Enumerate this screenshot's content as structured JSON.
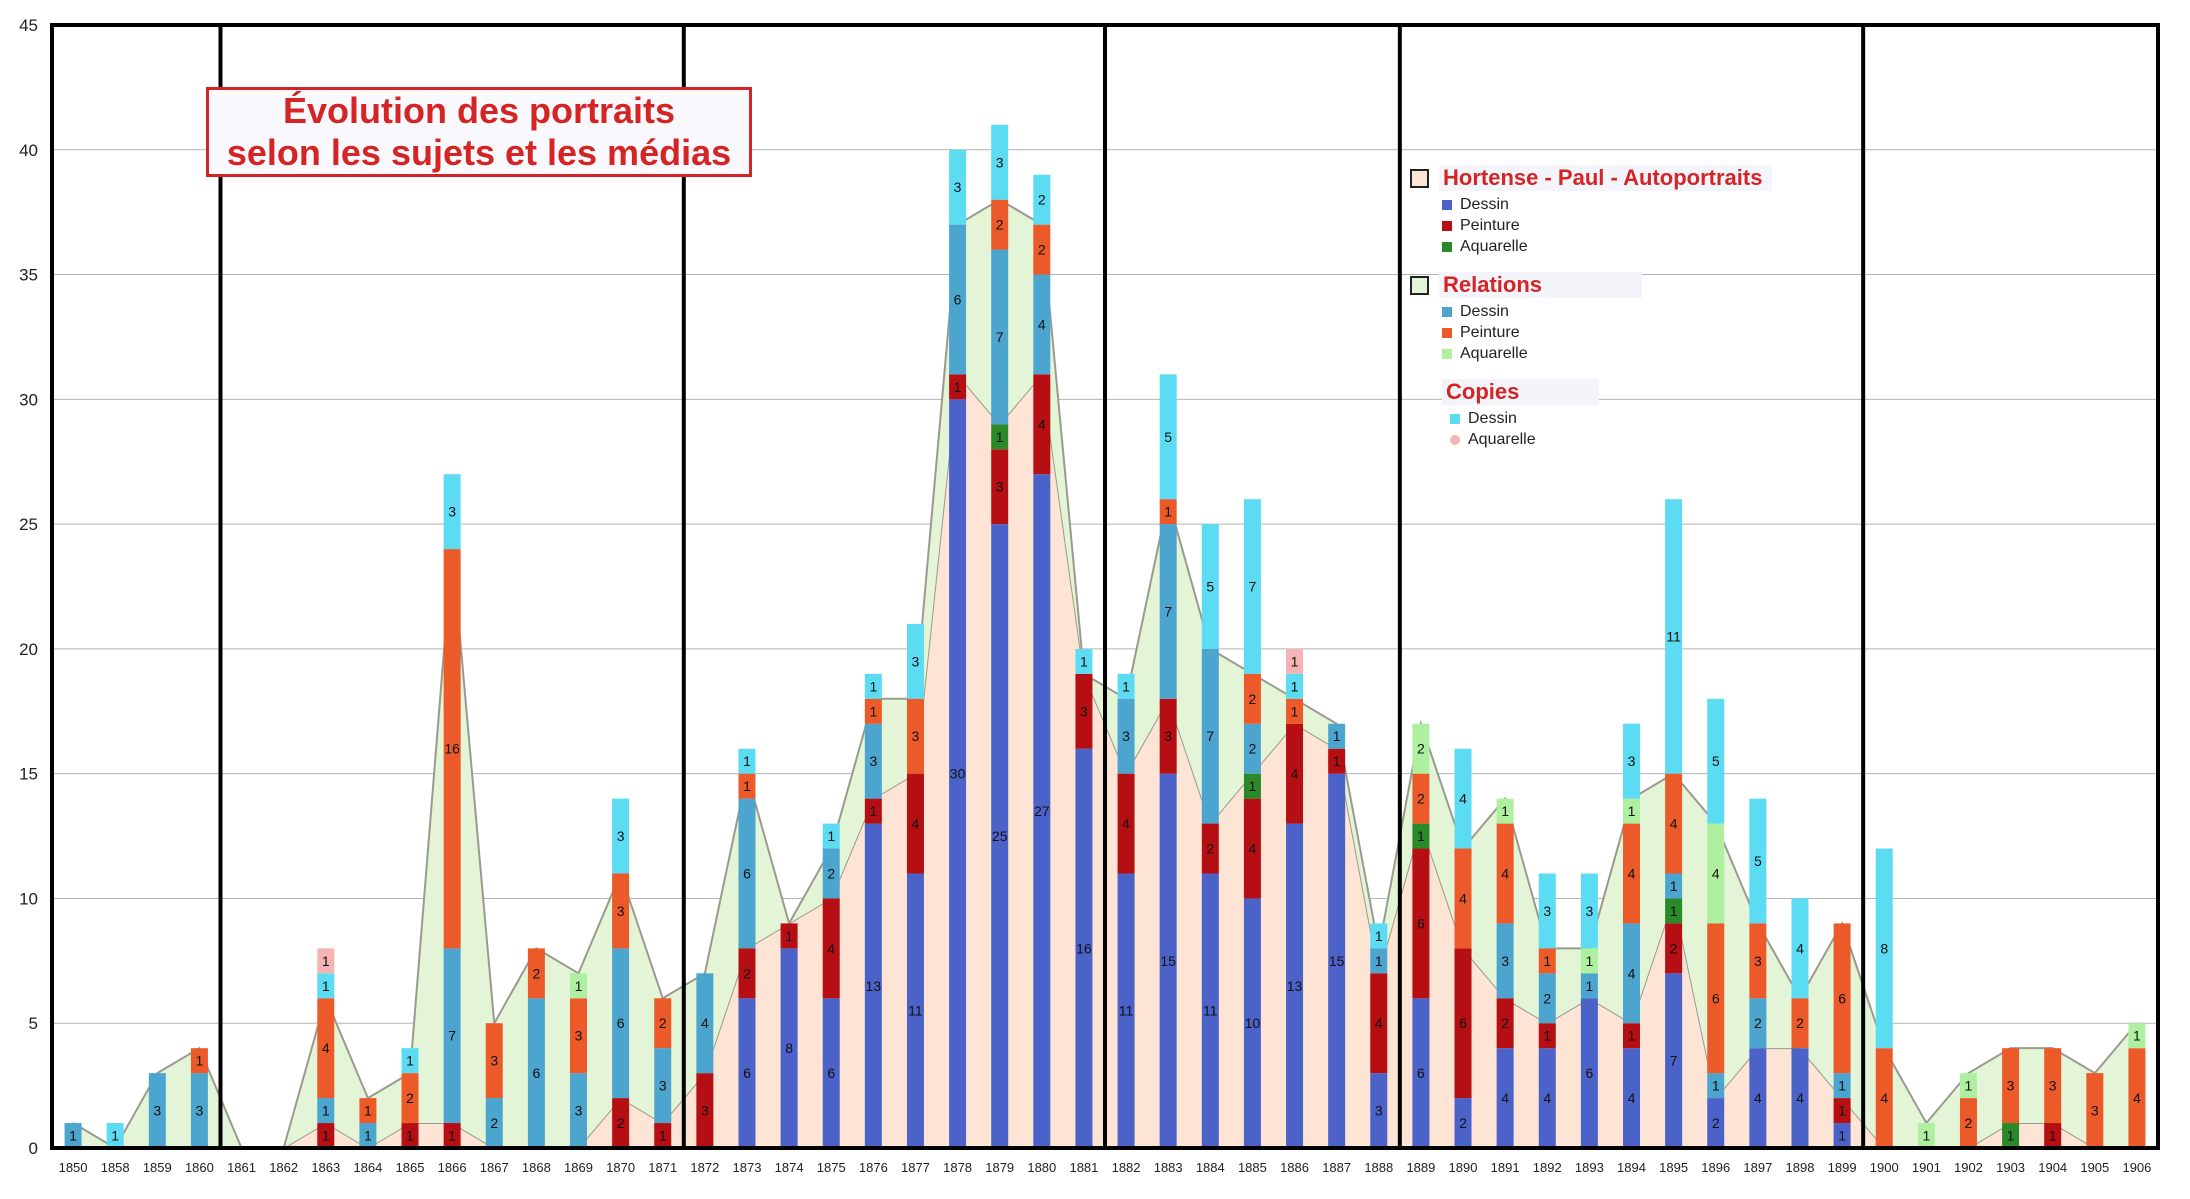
{
  "title": {
    "line1": "Évolution des portraits",
    "line2": "selon les sujets et les médias"
  },
  "legend": [
    {
      "header": "Hortense - Paul - Autoportraits",
      "header_color": "#fde4d4",
      "items": [
        {
          "label": "Dessin",
          "color": "#4b63c9"
        },
        {
          "label": "Peinture",
          "color": "#b50f14"
        },
        {
          "label": "Aquarelle",
          "color": "#2a8a2a"
        }
      ]
    },
    {
      "header": "Relations",
      "header_color": "#e3f5d6",
      "items": [
        {
          "label": "Dessin",
          "color": "#4ba5cf"
        },
        {
          "label": "Peinture",
          "color": "#ec5a29"
        },
        {
          "label": "Aquarelle",
          "color": "#aef0a0"
        }
      ]
    },
    {
      "header": "Copies",
      "header_color": null,
      "items": [
        {
          "label": "Dessin",
          "color": "#5cdcf3"
        },
        {
          "label": "Aquarelle",
          "color": "#f6b3b3"
        }
      ]
    }
  ],
  "chart_data": {
    "type": "bar",
    "stacked": true,
    "ylim": [
      0,
      45
    ],
    "yticks": [
      0,
      5,
      10,
      15,
      20,
      25,
      30,
      35,
      40,
      45
    ],
    "grid": true,
    "legend_position": "right",
    "categories": [
      "1850",
      "1858",
      "1859",
      "1860",
      "1861",
      "1862",
      "1863",
      "1864",
      "1865",
      "1866",
      "1867",
      "1868",
      "1869",
      "1870",
      "1871",
      "1872",
      "1873",
      "1874",
      "1875",
      "1876",
      "1877",
      "1878",
      "1879",
      "1880",
      "1881",
      "1882",
      "1883",
      "1884",
      "1885",
      "1886",
      "1887",
      "1888",
      "1889",
      "1890",
      "1891",
      "1892",
      "1893",
      "1894",
      "1895",
      "1896",
      "1897",
      "1898",
      "1899",
      "1900",
      "1901",
      "1902",
      "1903",
      "1904",
      "1905",
      "1906"
    ],
    "period_dividers_after": [
      "1860",
      "1871",
      "1881",
      "1888",
      "1899"
    ],
    "series": [
      {
        "name": "Hortense - Paul - Autoportraits Dessin",
        "color": "#4b63c9",
        "values": [
          0,
          0,
          0,
          0,
          0,
          0,
          0,
          0,
          0,
          0,
          0,
          0,
          0,
          0,
          0,
          0,
          6,
          8,
          6,
          13,
          11,
          30,
          25,
          27,
          16,
          11,
          15,
          11,
          10,
          13,
          15,
          3,
          6,
          2,
          4,
          4,
          6,
          4,
          7,
          2,
          4,
          4,
          1,
          0,
          0,
          0,
          0,
          0,
          0,
          0
        ]
      },
      {
        "name": "Hortense - Paul - Autoportraits Peinture",
        "color": "#b50f14",
        "values": [
          0,
          0,
          0,
          0,
          0,
          0,
          1,
          0,
          1,
          1,
          0,
          0,
          0,
          2,
          1,
          3,
          2,
          1,
          4,
          1,
          4,
          1,
          3,
          4,
          3,
          4,
          3,
          2,
          4,
          4,
          1,
          4,
          6,
          6,
          2,
          1,
          0,
          1,
          2,
          0,
          0,
          0,
          1,
          0,
          0,
          0,
          0,
          1,
          0,
          0
        ]
      },
      {
        "name": "Hortense - Paul - Autoportraits Aquarelle",
        "color": "#2a8a2a",
        "values": [
          0,
          0,
          0,
          0,
          0,
          0,
          0,
          0,
          0,
          0,
          0,
          0,
          0,
          0,
          0,
          0,
          0,
          0,
          0,
          0,
          0,
          0,
          1,
          0,
          0,
          0,
          0,
          0,
          1,
          0,
          0,
          0,
          1,
          0,
          0,
          0,
          0,
          0,
          1,
          0,
          0,
          0,
          0,
          0,
          0,
          0,
          1,
          0,
          0,
          0
        ]
      },
      {
        "name": "Relations Dessin",
        "color": "#4ba5cf",
        "values": [
          1,
          0,
          3,
          3,
          0,
          0,
          1,
          1,
          0,
          7,
          2,
          6,
          3,
          6,
          3,
          4,
          6,
          0,
          2,
          3,
          0,
          6,
          7,
          4,
          0,
          3,
          7,
          7,
          2,
          0,
          1,
          1,
          0,
          0,
          3,
          2,
          1,
          4,
          1,
          1,
          2,
          0,
          1,
          0,
          0,
          0,
          0,
          0,
          0,
          0
        ]
      },
      {
        "name": "Relations Peinture",
        "color": "#ec5a29",
        "values": [
          0,
          0,
          0,
          1,
          0,
          0,
          4,
          1,
          2,
          16,
          3,
          2,
          3,
          3,
          2,
          0,
          1,
          0,
          0,
          1,
          3,
          0,
          2,
          2,
          0,
          0,
          1,
          0,
          2,
          1,
          0,
          0,
          2,
          4,
          4,
          1,
          0,
          4,
          4,
          6,
          3,
          2,
          6,
          4,
          0,
          2,
          3,
          3,
          3,
          4
        ]
      },
      {
        "name": "Relations Aquarelle",
        "color": "#aef0a0",
        "values": [
          0,
          0,
          0,
          0,
          0,
          0,
          0,
          0,
          0,
          0,
          0,
          0,
          1,
          0,
          0,
          0,
          0,
          0,
          0,
          0,
          0,
          0,
          0,
          0,
          0,
          0,
          0,
          0,
          0,
          0,
          0,
          0,
          2,
          0,
          1,
          0,
          1,
          1,
          0,
          4,
          0,
          0,
          0,
          0,
          1,
          1,
          0,
          0,
          0,
          1
        ]
      },
      {
        "name": "Copies Dessin",
        "color": "#5cdcf3",
        "values": [
          0,
          1,
          0,
          0,
          0,
          0,
          1,
          0,
          1,
          3,
          0,
          0,
          0,
          3,
          0,
          0,
          1,
          0,
          1,
          1,
          3,
          3,
          3,
          2,
          1,
          1,
          5,
          5,
          7,
          1,
          0,
          1,
          0,
          4,
          0,
          3,
          3,
          3,
          11,
          5,
          5,
          4,
          0,
          8,
          0,
          0,
          0,
          0,
          0,
          0
        ]
      },
      {
        "name": "Copies Aquarelle",
        "color": "#f6b3b3",
        "values": [
          0,
          0,
          0,
          0,
          0,
          0,
          1,
          0,
          0,
          0,
          0,
          0,
          0,
          0,
          0,
          0,
          0,
          0,
          0,
          0,
          0,
          0,
          0,
          0,
          0,
          0,
          0,
          0,
          0,
          1,
          0,
          0,
          0,
          0,
          0,
          0,
          0,
          0,
          0,
          0,
          0,
          0,
          0,
          0,
          0,
          0,
          0,
          0,
          0,
          0
        ]
      }
    ],
    "area_groups": [
      {
        "series_range": [
          0,
          2
        ],
        "color": "#fde4d4"
      },
      {
        "series_range": [
          3,
          5
        ],
        "color": "#e3f5d6"
      }
    ]
  }
}
